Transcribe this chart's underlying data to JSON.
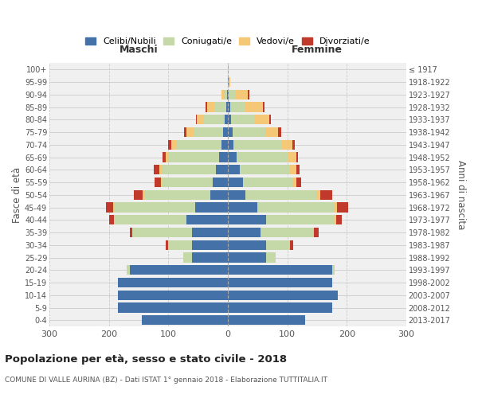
{
  "age_groups": [
    "0-4",
    "5-9",
    "10-14",
    "15-19",
    "20-24",
    "25-29",
    "30-34",
    "35-39",
    "40-44",
    "45-49",
    "50-54",
    "55-59",
    "60-64",
    "65-69",
    "70-74",
    "75-79",
    "80-84",
    "85-89",
    "90-94",
    "95-99",
    "100+"
  ],
  "birth_years": [
    "2013-2017",
    "2008-2012",
    "2003-2007",
    "1998-2002",
    "1993-1997",
    "1988-1992",
    "1983-1987",
    "1978-1982",
    "1973-1977",
    "1968-1972",
    "1963-1967",
    "1958-1962",
    "1953-1957",
    "1948-1952",
    "1943-1947",
    "1938-1942",
    "1933-1937",
    "1928-1932",
    "1923-1927",
    "1918-1922",
    "≤ 1917"
  ],
  "colors": {
    "celibi": "#4472a8",
    "coniugati": "#c5d9a8",
    "vedovi": "#f5c878",
    "divorziati": "#c0392b"
  },
  "males": {
    "celibi": [
      145,
      185,
      185,
      185,
      165,
      60,
      60,
      60,
      70,
      55,
      30,
      25,
      20,
      15,
      10,
      8,
      5,
      3,
      1,
      0,
      0
    ],
    "coniugati": [
      0,
      0,
      0,
      0,
      5,
      15,
      40,
      100,
      120,
      135,
      110,
      85,
      90,
      85,
      75,
      50,
      35,
      20,
      4,
      0,
      0
    ],
    "vedovi": [
      0,
      0,
      0,
      0,
      0,
      0,
      0,
      0,
      2,
      3,
      3,
      3,
      5,
      5,
      10,
      12,
      12,
      12,
      5,
      0,
      0
    ],
    "divorziati": [
      0,
      0,
      0,
      0,
      0,
      0,
      5,
      5,
      8,
      12,
      15,
      10,
      10,
      5,
      5,
      3,
      2,
      2,
      0,
      0,
      0
    ]
  },
  "females": {
    "celibi": [
      130,
      175,
      185,
      175,
      175,
      65,
      65,
      55,
      65,
      50,
      30,
      25,
      20,
      15,
      10,
      8,
      5,
      4,
      2,
      1,
      0
    ],
    "coniugati": [
      0,
      0,
      0,
      0,
      5,
      15,
      40,
      90,
      115,
      130,
      120,
      85,
      85,
      85,
      80,
      55,
      40,
      25,
      10,
      1,
      0
    ],
    "vedovi": [
      0,
      0,
      0,
      0,
      0,
      0,
      0,
      0,
      2,
      3,
      5,
      5,
      10,
      15,
      18,
      22,
      25,
      30,
      22,
      2,
      0
    ],
    "divorziati": [
      0,
      0,
      0,
      0,
      0,
      0,
      5,
      8,
      10,
      20,
      20,
      8,
      5,
      3,
      5,
      5,
      3,
      3,
      2,
      0,
      0
    ]
  },
  "title": "Popolazione per età, sesso e stato civile - 2018",
  "subtitle": "COMUNE DI VALLE AURINA (BZ) - Dati ISTAT 1° gennaio 2018 - Elaborazione TUTTITALIA.IT",
  "ylabel_left": "Fasce di età",
  "ylabel_right": "Anni di nascita",
  "xlabel_left": "Maschi",
  "xlabel_right": "Femmine",
  "xlim": 300,
  "legend_labels": [
    "Celibi/Nubili",
    "Coniugati/e",
    "Vedovi/e",
    "Divorziati/e"
  ],
  "bg_color": "#f0f0f0",
  "grid_color": "#cccccc"
}
